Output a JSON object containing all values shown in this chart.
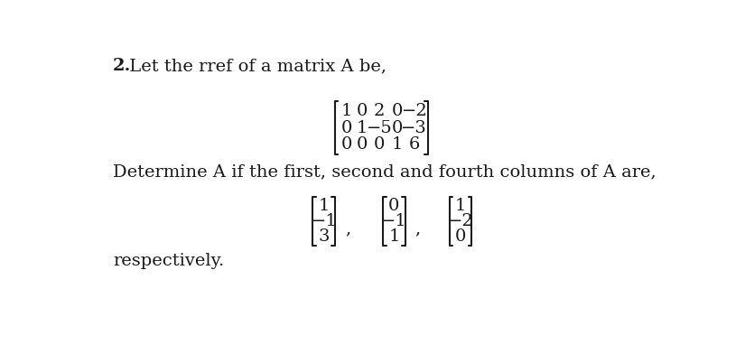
{
  "bg_color": "#ffffff",
  "text_color": "#1a1a1a",
  "heading_bold": "2.",
  "heading_rest": " Let the rref of a matrix A be,",
  "rref_rows": [
    [
      "1",
      "0",
      "2",
      "0",
      "−2"
    ],
    [
      "0",
      "1",
      "−5",
      "0",
      "−3"
    ],
    [
      "0",
      "0",
      "0",
      "1",
      "6"
    ]
  ],
  "determine_text": "Determine A if the first, second and fourth columns of A are,",
  "col1": [
    "1",
    "−1",
    "3"
  ],
  "col2": [
    "0",
    "−1",
    "1"
  ],
  "col3": [
    "1",
    "−2",
    "0"
  ],
  "footer": "respectively.",
  "fig_width": 8.25,
  "fig_height": 3.92,
  "dpi": 100
}
